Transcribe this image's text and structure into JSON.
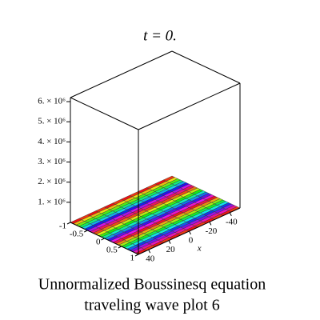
{
  "chart_data": {
    "type": "surface3d",
    "title": "t = 0.",
    "caption": [
      "Unnormalized Boussinesq equation",
      "traveling wave plot 6"
    ],
    "xlabel": "x",
    "xlim": [
      50,
      -50
    ],
    "xticks": [
      40,
      20,
      0,
      -20,
      -40
    ],
    "ylim": [
      -1,
      1
    ],
    "yticks": [
      -1,
      -0.5,
      0,
      0.5,
      1
    ],
    "zlim": [
      0,
      6200000
    ],
    "zticks": [
      {
        "value": 1000000,
        "label": "1. × 10⁶"
      },
      {
        "value": 2000000,
        "label": "2. × 10⁶"
      },
      {
        "value": 3000000,
        "label": "3. × 10⁶"
      },
      {
        "value": 4000000,
        "label": "4. × 10⁶"
      },
      {
        "value": 5000000,
        "label": "5. × 10⁶"
      },
      {
        "value": 6000000,
        "label": "6. × 10⁶"
      }
    ],
    "surface_level": 0
  }
}
